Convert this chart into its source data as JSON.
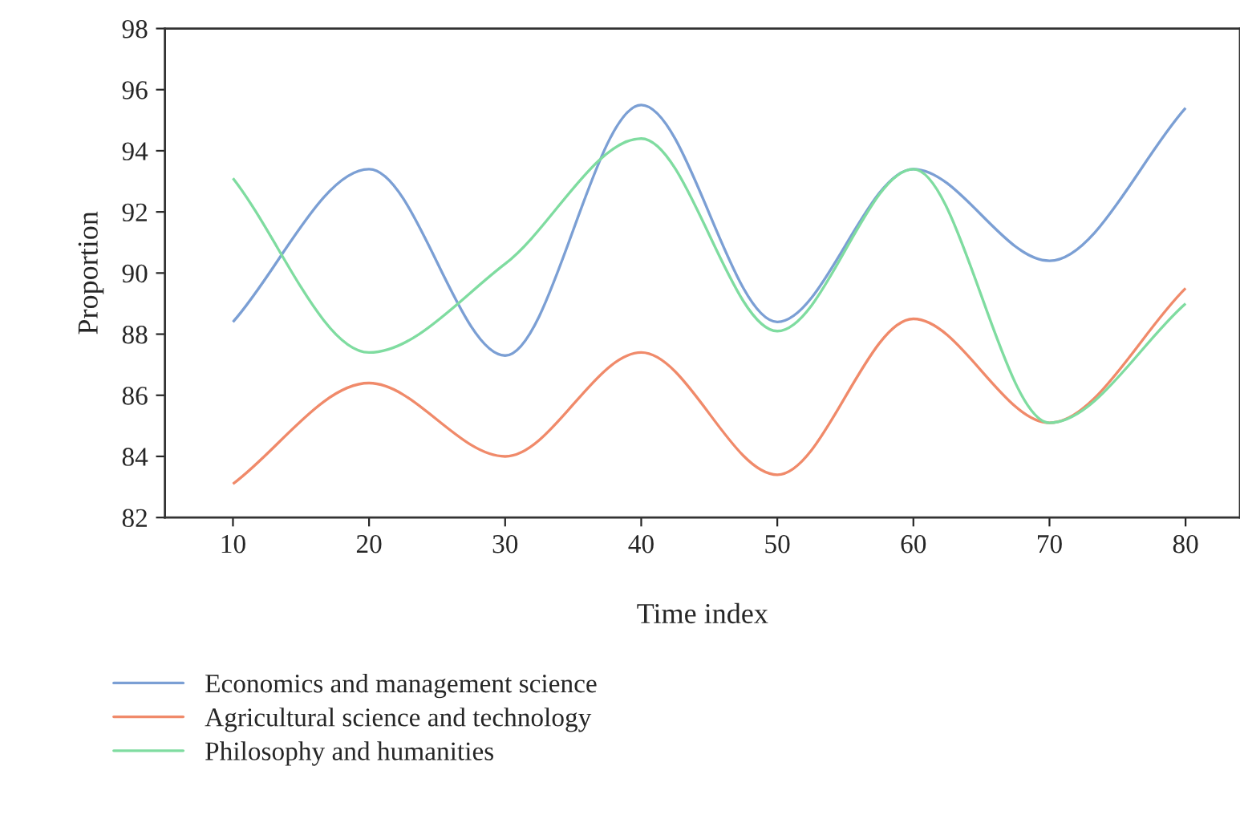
{
  "chart_data": {
    "type": "line",
    "xlabel": "Time index",
    "ylabel": "Proportion",
    "x": [
      10,
      20,
      30,
      40,
      50,
      60,
      70,
      80
    ],
    "xlim": [
      5,
      84
    ],
    "xticks": [
      10,
      20,
      30,
      40,
      50,
      60,
      70,
      80
    ],
    "ylim": [
      82,
      98
    ],
    "yticks": [
      82,
      84,
      86,
      88,
      90,
      92,
      94,
      96,
      98
    ],
    "grid": false,
    "legend": "bottom",
    "marker": "none",
    "line_style": "solid",
    "series": [
      {
        "name": "Economics and management science",
        "color": "#7b9fd4",
        "values": [
          88.4,
          93.4,
          87.3,
          95.5,
          88.4,
          93.4,
          90.4,
          95.4
        ]
      },
      {
        "name": "Agricultural science and technology",
        "color": "#f08a6a",
        "values": [
          83.1,
          86.4,
          84.0,
          87.4,
          83.4,
          88.5,
          85.1,
          89.5
        ]
      },
      {
        "name": "Philosophy and humanities",
        "color": "#7fdca0",
        "values": [
          93.1,
          87.4,
          90.3,
          94.4,
          88.1,
          93.4,
          85.1,
          89.0
        ]
      }
    ]
  }
}
